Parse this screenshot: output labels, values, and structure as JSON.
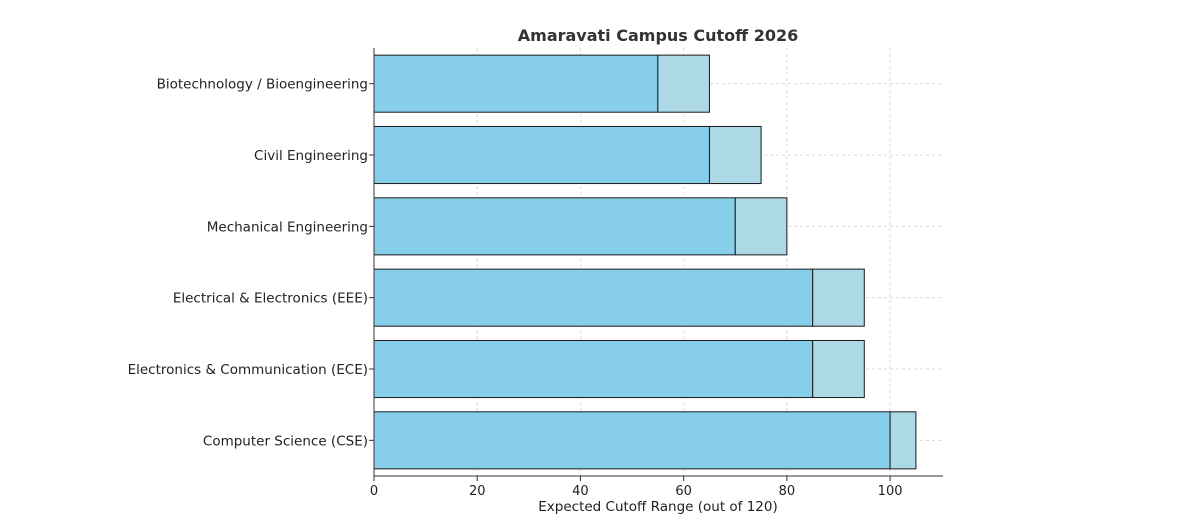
{
  "chart_data": {
    "type": "bar",
    "orientation": "horizontal",
    "stacked": true,
    "title": "Amaravati Campus Cutoff 2026",
    "xlabel": "Expected Cutoff Range (out of 120)",
    "ylabel": "",
    "xlim": [
      0,
      110.25
    ],
    "xticks": [
      0,
      20,
      40,
      60,
      80,
      100
    ],
    "grid": true,
    "categories": [
      "Computer Science (CSE)",
      "Electronics & Communication (ECE)",
      "Electrical & Electronics (EEE)",
      "Mechanical Engineering",
      "Civil Engineering",
      "Biotechnology / Bioengineering"
    ],
    "low": [
      100,
      85,
      85,
      70,
      65,
      55
    ],
    "high": [
      105,
      95,
      95,
      80,
      75,
      65
    ],
    "colors": {
      "low": "#87CEEB",
      "range": "#ADD8E6",
      "edge": "#1a1a1a",
      "grid": "#d0d0d0"
    }
  }
}
